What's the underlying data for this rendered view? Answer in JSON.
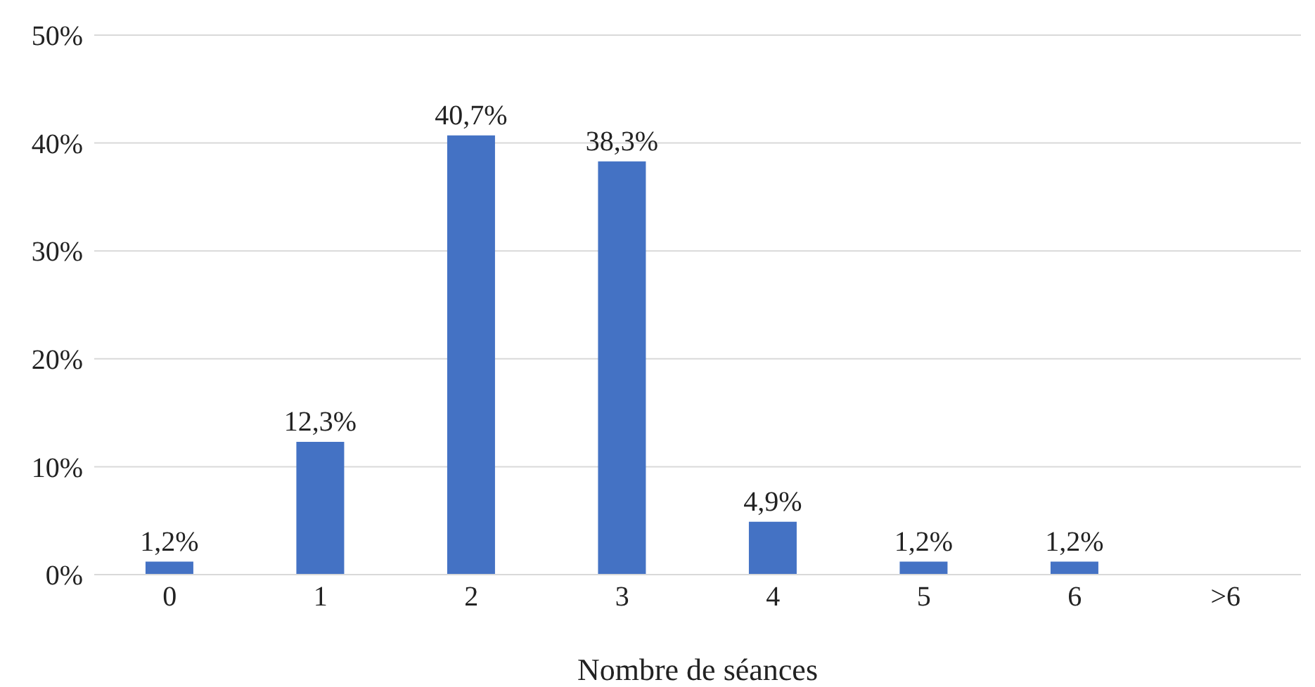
{
  "chart_data": {
    "type": "bar",
    "xlabel": "Nombre de séances",
    "categories": [
      "0",
      "1",
      "2",
      "3",
      "4",
      "5",
      "6",
      ">6"
    ],
    "values": [
      1.2,
      12.3,
      40.7,
      38.3,
      4.9,
      1.2,
      1.2,
      null
    ],
    "value_labels": [
      "1,2%",
      "12,3%",
      "40,7%",
      "38,3%",
      "4,9%",
      "1,2%",
      "1,2%",
      null
    ],
    "color": "#4472c4",
    "ylim": [
      0,
      50
    ],
    "yticks": [
      {
        "value": 0,
        "label": "0%"
      },
      {
        "value": 10,
        "label": "10%"
      },
      {
        "value": 20,
        "label": "20%"
      },
      {
        "value": 30,
        "label": "30%"
      },
      {
        "value": 40,
        "label": "40%"
      },
      {
        "value": 50,
        "label": "50%"
      }
    ],
    "grid": "y",
    "legend": false
  }
}
